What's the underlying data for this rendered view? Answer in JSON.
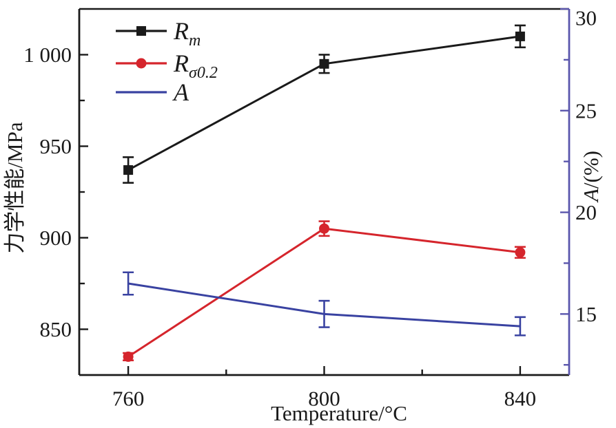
{
  "chart_data": {
    "type": "line",
    "title": "",
    "x": [
      760,
      800,
      840
    ],
    "xlabel": "Temperature/°C",
    "ylabel_left": "力学性能/MPa",
    "ylabel_right_main": "A",
    "ylabel_right_rest": "/(%)",
    "x_range": [
      750,
      850
    ],
    "y_left_range": [
      825,
      1025
    ],
    "y_right_range": [
      12,
      30
    ],
    "grid": false,
    "legend_position": "top-left-inside",
    "x_axis": {
      "major_ticks": [
        {
          "value": 760,
          "label": "760"
        },
        {
          "value": 800,
          "label": "800"
        },
        {
          "value": 840,
          "label": "840"
        }
      ],
      "minor_ticks": [
        780,
        820
      ]
    },
    "y_left_axis": {
      "major_ticks": [
        {
          "value": 850,
          "label": "850"
        },
        {
          "value": 900,
          "label": "900"
        },
        {
          "value": 950,
          "label": "950"
        },
        {
          "value": 1000,
          "label": "1 000"
        }
      ],
      "minor_ticks": [
        875,
        925,
        975
      ]
    },
    "y_right_axis": {
      "major_ticks": [
        {
          "value": 15,
          "label": "15"
        },
        {
          "value": 20,
          "label": "20"
        },
        {
          "value": 25,
          "label": "25"
        },
        {
          "value": 30,
          "label": "30"
        }
      ],
      "minor_ticks": [
        12.5,
        17.5,
        22.5,
        27.5
      ]
    },
    "series": [
      {
        "name": "Rm",
        "legend_main": "R",
        "legend_sub": "m",
        "axis": "left",
        "marker": "square",
        "color": "#1a1a1a",
        "values": [
          937,
          995,
          1010
        ],
        "errors": [
          7,
          5,
          6
        ]
      },
      {
        "name": "Rsigma0.2",
        "legend_main": "R",
        "legend_sub": "σ0.2",
        "axis": "left",
        "marker": "circle",
        "color": "#d5252c",
        "values": [
          835,
          905,
          892
        ],
        "errors": [
          2,
          4,
          3
        ]
      },
      {
        "name": "A",
        "legend_main": "A",
        "legend_sub": "",
        "axis": "right",
        "marker": "none",
        "color": "#3942a1",
        "values": [
          16.5,
          15.0,
          14.4
        ],
        "errors": [
          0.55,
          0.65,
          0.45
        ]
      }
    ],
    "colors": {
      "axis_black": "#1a1a1a",
      "axis_right": "#5b57ad",
      "background": "#ffffff"
    }
  }
}
